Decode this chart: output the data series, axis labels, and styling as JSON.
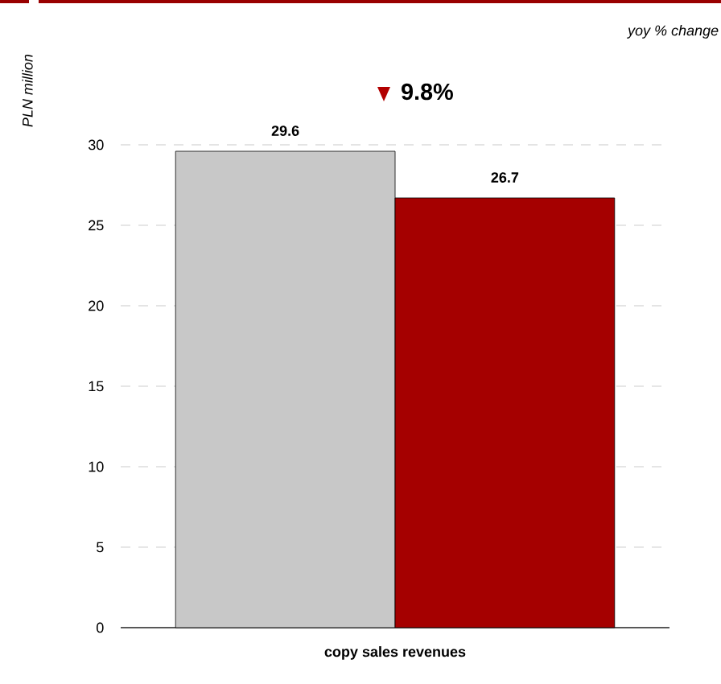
{
  "chart_data": {
    "type": "bar",
    "ylabel": "PLN million",
    "categories": [
      "copy sales revenues"
    ],
    "series": [
      {
        "color": "#c8c8c8",
        "values": [
          29.6
        ]
      },
      {
        "color": "#a50000",
        "values": [
          26.7
        ]
      }
    ],
    "ylim": [
      0,
      30
    ],
    "yticks": [
      0,
      5,
      10,
      15,
      20,
      25,
      30
    ],
    "grid": "y",
    "data_labels": true,
    "annotations": [
      "yoy % change",
      "9.8%"
    ]
  }
}
